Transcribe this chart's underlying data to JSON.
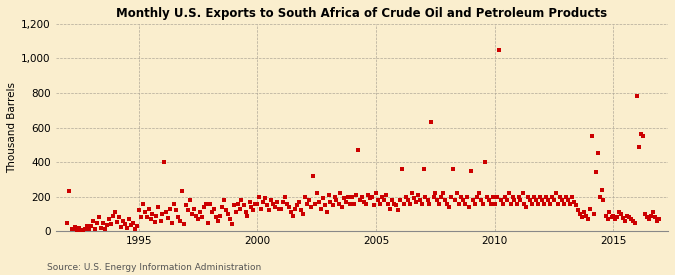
{
  "title": "Monthly U.S. Exports to South Africa of Crude Oil and Petroleum Products",
  "ylabel": "Thousand Barrels",
  "source": "Source: U.S. Energy Information Administration",
  "background_color": "#faeece",
  "dot_color": "#cc0000",
  "xlim_start": 1991.5,
  "xlim_end": 2017.3,
  "ylim": [
    0,
    1200
  ],
  "yticks": [
    0,
    200,
    400,
    600,
    800,
    1000,
    1200
  ],
  "xticks": [
    1995,
    2000,
    2005,
    2010,
    2015
  ],
  "data_points": [
    [
      1992.0,
      45
    ],
    [
      1992.08,
      230
    ],
    [
      1992.17,
      15
    ],
    [
      1992.25,
      10
    ],
    [
      1992.33,
      25
    ],
    [
      1992.42,
      5
    ],
    [
      1992.5,
      20
    ],
    [
      1992.58,
      8
    ],
    [
      1992.67,
      5
    ],
    [
      1992.75,
      12
    ],
    [
      1992.83,
      30
    ],
    [
      1992.92,
      15
    ],
    [
      1993.0,
      30
    ],
    [
      1993.08,
      60
    ],
    [
      1993.17,
      10
    ],
    [
      1993.25,
      45
    ],
    [
      1993.33,
      80
    ],
    [
      1993.42,
      20
    ],
    [
      1993.5,
      50
    ],
    [
      1993.58,
      15
    ],
    [
      1993.67,
      35
    ],
    [
      1993.75,
      70
    ],
    [
      1993.83,
      40
    ],
    [
      1993.92,
      90
    ],
    [
      1994.0,
      110
    ],
    [
      1994.08,
      55
    ],
    [
      1994.17,
      85
    ],
    [
      1994.25,
      25
    ],
    [
      1994.33,
      60
    ],
    [
      1994.42,
      40
    ],
    [
      1994.5,
      20
    ],
    [
      1994.58,
      70
    ],
    [
      1994.67,
      35
    ],
    [
      1994.75,
      50
    ],
    [
      1994.83,
      15
    ],
    [
      1994.92,
      30
    ],
    [
      1995.0,
      120
    ],
    [
      1995.08,
      80
    ],
    [
      1995.17,
      160
    ],
    [
      1995.25,
      110
    ],
    [
      1995.33,
      85
    ],
    [
      1995.42,
      130
    ],
    [
      1995.5,
      70
    ],
    [
      1995.58,
      100
    ],
    [
      1995.67,
      55
    ],
    [
      1995.75,
      90
    ],
    [
      1995.83,
      140
    ],
    [
      1995.92,
      60
    ],
    [
      1996.0,
      100
    ],
    [
      1996.08,
      400
    ],
    [
      1996.17,
      110
    ],
    [
      1996.25,
      75
    ],
    [
      1996.33,
      130
    ],
    [
      1996.42,
      50
    ],
    [
      1996.5,
      160
    ],
    [
      1996.58,
      120
    ],
    [
      1996.67,
      85
    ],
    [
      1996.75,
      60
    ],
    [
      1996.83,
      230
    ],
    [
      1996.92,
      40
    ],
    [
      1997.0,
      150
    ],
    [
      1997.08,
      120
    ],
    [
      1997.17,
      180
    ],
    [
      1997.25,
      100
    ],
    [
      1997.33,
      130
    ],
    [
      1997.42,
      90
    ],
    [
      1997.5,
      70
    ],
    [
      1997.58,
      110
    ],
    [
      1997.67,
      80
    ],
    [
      1997.75,
      140
    ],
    [
      1997.83,
      160
    ],
    [
      1997.92,
      50
    ],
    [
      1998.0,
      160
    ],
    [
      1998.08,
      110
    ],
    [
      1998.17,
      130
    ],
    [
      1998.25,
      80
    ],
    [
      1998.33,
      60
    ],
    [
      1998.42,
      90
    ],
    [
      1998.5,
      140
    ],
    [
      1998.58,
      180
    ],
    [
      1998.67,
      120
    ],
    [
      1998.75,
      100
    ],
    [
      1998.83,
      70
    ],
    [
      1998.92,
      40
    ],
    [
      1999.0,
      150
    ],
    [
      1999.08,
      110
    ],
    [
      1999.17,
      160
    ],
    [
      1999.25,
      130
    ],
    [
      1999.33,
      180
    ],
    [
      1999.42,
      150
    ],
    [
      1999.5,
      110
    ],
    [
      1999.58,
      90
    ],
    [
      1999.67,
      170
    ],
    [
      1999.75,
      140
    ],
    [
      1999.83,
      120
    ],
    [
      1999.92,
      160
    ],
    [
      2000.0,
      160
    ],
    [
      2000.08,
      200
    ],
    [
      2000.17,
      130
    ],
    [
      2000.25,
      170
    ],
    [
      2000.33,
      190
    ],
    [
      2000.42,
      150
    ],
    [
      2000.5,
      120
    ],
    [
      2000.58,
      180
    ],
    [
      2000.67,
      160
    ],
    [
      2000.75,
      140
    ],
    [
      2000.83,
      170
    ],
    [
      2000.92,
      130
    ],
    [
      2001.0,
      130
    ],
    [
      2001.08,
      170
    ],
    [
      2001.17,
      200
    ],
    [
      2001.25,
      160
    ],
    [
      2001.33,
      140
    ],
    [
      2001.42,
      110
    ],
    [
      2001.5,
      90
    ],
    [
      2001.58,
      130
    ],
    [
      2001.67,
      150
    ],
    [
      2001.75,
      170
    ],
    [
      2001.83,
      120
    ],
    [
      2001.92,
      100
    ],
    [
      2002.0,
      200
    ],
    [
      2002.08,
      160
    ],
    [
      2002.17,
      180
    ],
    [
      2002.25,
      140
    ],
    [
      2002.33,
      320
    ],
    [
      2002.42,
      160
    ],
    [
      2002.5,
      220
    ],
    [
      2002.58,
      170
    ],
    [
      2002.67,
      130
    ],
    [
      2002.75,
      190
    ],
    [
      2002.83,
      150
    ],
    [
      2002.92,
      110
    ],
    [
      2003.0,
      210
    ],
    [
      2003.08,
      170
    ],
    [
      2003.17,
      150
    ],
    [
      2003.25,
      200
    ],
    [
      2003.33,
      180
    ],
    [
      2003.42,
      160
    ],
    [
      2003.5,
      220
    ],
    [
      2003.58,
      140
    ],
    [
      2003.67,
      190
    ],
    [
      2003.75,
      170
    ],
    [
      2003.83,
      200
    ],
    [
      2003.92,
      160
    ],
    [
      2004.0,
      200
    ],
    [
      2004.08,
      160
    ],
    [
      2004.17,
      210
    ],
    [
      2004.25,
      470
    ],
    [
      2004.33,
      180
    ],
    [
      2004.42,
      200
    ],
    [
      2004.5,
      170
    ],
    [
      2004.58,
      160
    ],
    [
      2004.67,
      210
    ],
    [
      2004.75,
      190
    ],
    [
      2004.83,
      200
    ],
    [
      2004.92,
      150
    ],
    [
      2005.0,
      220
    ],
    [
      2005.08,
      180
    ],
    [
      2005.17,
      160
    ],
    [
      2005.25,
      200
    ],
    [
      2005.33,
      180
    ],
    [
      2005.42,
      210
    ],
    [
      2005.5,
      160
    ],
    [
      2005.58,
      130
    ],
    [
      2005.67,
      180
    ],
    [
      2005.75,
      160
    ],
    [
      2005.83,
      150
    ],
    [
      2005.92,
      120
    ],
    [
      2006.0,
      180
    ],
    [
      2006.08,
      360
    ],
    [
      2006.17,
      160
    ],
    [
      2006.25,
      200
    ],
    [
      2006.33,
      180
    ],
    [
      2006.42,
      160
    ],
    [
      2006.5,
      220
    ],
    [
      2006.58,
      190
    ],
    [
      2006.67,
      170
    ],
    [
      2006.75,
      210
    ],
    [
      2006.83,
      180
    ],
    [
      2006.92,
      160
    ],
    [
      2007.0,
      360
    ],
    [
      2007.08,
      200
    ],
    [
      2007.17,
      180
    ],
    [
      2007.25,
      160
    ],
    [
      2007.33,
      630
    ],
    [
      2007.42,
      200
    ],
    [
      2007.5,
      220
    ],
    [
      2007.58,
      180
    ],
    [
      2007.67,
      160
    ],
    [
      2007.75,
      200
    ],
    [
      2007.83,
      220
    ],
    [
      2007.92,
      180
    ],
    [
      2008.0,
      160
    ],
    [
      2008.08,
      140
    ],
    [
      2008.17,
      200
    ],
    [
      2008.25,
      360
    ],
    [
      2008.33,
      180
    ],
    [
      2008.42,
      220
    ],
    [
      2008.5,
      160
    ],
    [
      2008.58,
      200
    ],
    [
      2008.67,
      180
    ],
    [
      2008.75,
      160
    ],
    [
      2008.83,
      200
    ],
    [
      2008.92,
      140
    ],
    [
      2009.0,
      350
    ],
    [
      2009.08,
      180
    ],
    [
      2009.17,
      160
    ],
    [
      2009.25,
      200
    ],
    [
      2009.33,
      220
    ],
    [
      2009.42,
      180
    ],
    [
      2009.5,
      160
    ],
    [
      2009.58,
      400
    ],
    [
      2009.67,
      200
    ],
    [
      2009.75,
      180
    ],
    [
      2009.83,
      160
    ],
    [
      2009.92,
      200
    ],
    [
      2010.0,
      160
    ],
    [
      2010.08,
      200
    ],
    [
      2010.17,
      1050
    ],
    [
      2010.25,
      180
    ],
    [
      2010.33,
      160
    ],
    [
      2010.42,
      200
    ],
    [
      2010.5,
      180
    ],
    [
      2010.58,
      220
    ],
    [
      2010.67,
      160
    ],
    [
      2010.75,
      200
    ],
    [
      2010.83,
      180
    ],
    [
      2010.92,
      160
    ],
    [
      2011.0,
      200
    ],
    [
      2011.08,
      180
    ],
    [
      2011.17,
      220
    ],
    [
      2011.25,
      160
    ],
    [
      2011.33,
      140
    ],
    [
      2011.42,
      200
    ],
    [
      2011.5,
      180
    ],
    [
      2011.58,
      160
    ],
    [
      2011.67,
      200
    ],
    [
      2011.75,
      180
    ],
    [
      2011.83,
      160
    ],
    [
      2011.92,
      200
    ],
    [
      2012.0,
      180
    ],
    [
      2012.08,
      160
    ],
    [
      2012.17,
      200
    ],
    [
      2012.25,
      180
    ],
    [
      2012.33,
      160
    ],
    [
      2012.42,
      200
    ],
    [
      2012.5,
      180
    ],
    [
      2012.58,
      220
    ],
    [
      2012.67,
      160
    ],
    [
      2012.75,
      200
    ],
    [
      2012.83,
      180
    ],
    [
      2012.92,
      160
    ],
    [
      2013.0,
      200
    ],
    [
      2013.08,
      180
    ],
    [
      2013.17,
      160
    ],
    [
      2013.25,
      200
    ],
    [
      2013.33,
      170
    ],
    [
      2013.42,
      150
    ],
    [
      2013.5,
      120
    ],
    [
      2013.58,
      100
    ],
    [
      2013.67,
      80
    ],
    [
      2013.75,
      110
    ],
    [
      2013.83,
      90
    ],
    [
      2013.92,
      70
    ],
    [
      2014.0,
      130
    ],
    [
      2014.08,
      550
    ],
    [
      2014.17,
      100
    ],
    [
      2014.25,
      340
    ],
    [
      2014.33,
      450
    ],
    [
      2014.42,
      200
    ],
    [
      2014.5,
      240
    ],
    [
      2014.58,
      180
    ],
    [
      2014.67,
      90
    ],
    [
      2014.75,
      70
    ],
    [
      2014.83,
      110
    ],
    [
      2014.92,
      80
    ],
    [
      2015.0,
      90
    ],
    [
      2015.08,
      70
    ],
    [
      2015.17,
      80
    ],
    [
      2015.25,
      110
    ],
    [
      2015.33,
      100
    ],
    [
      2015.42,
      75
    ],
    [
      2015.5,
      60
    ],
    [
      2015.58,
      90
    ],
    [
      2015.67,
      80
    ],
    [
      2015.75,
      70
    ],
    [
      2015.83,
      60
    ],
    [
      2015.92,
      50
    ],
    [
      2016.0,
      780
    ],
    [
      2016.08,
      490
    ],
    [
      2016.17,
      560
    ],
    [
      2016.25,
      550
    ],
    [
      2016.33,
      100
    ],
    [
      2016.42,
      80
    ],
    [
      2016.5,
      70
    ],
    [
      2016.58,
      90
    ],
    [
      2016.67,
      110
    ],
    [
      2016.75,
      80
    ],
    [
      2016.83,
      60
    ],
    [
      2016.92,
      70
    ]
  ]
}
